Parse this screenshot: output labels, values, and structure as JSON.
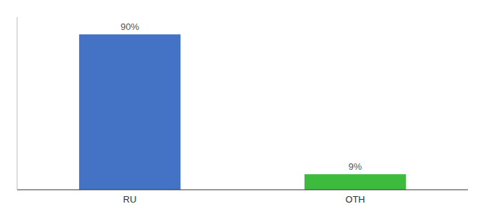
{
  "chart_data": {
    "type": "bar",
    "categories": [
      "RU",
      "OTH"
    ],
    "values": [
      90,
      9
    ],
    "value_labels": [
      "90%",
      "9%"
    ],
    "colors": [
      "#4472c4",
      "#3dbb3d"
    ],
    "ylim": [
      0,
      100
    ],
    "data_labels": true,
    "tick_labels": "x"
  }
}
